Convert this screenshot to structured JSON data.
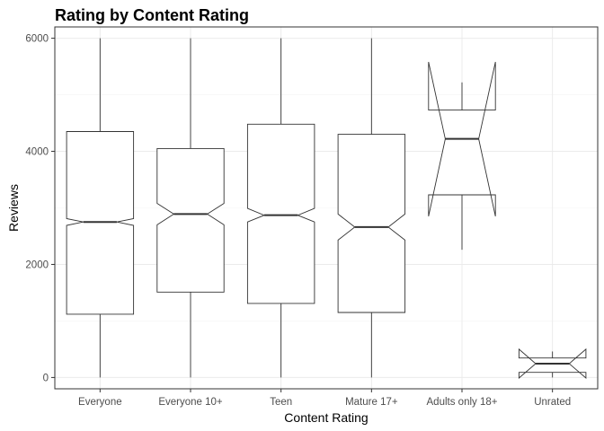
{
  "chart_data": {
    "type": "boxplot",
    "title": "Rating by Content Rating",
    "xlabel": "Content Rating",
    "ylabel": "Reviews",
    "ylim": [
      -200,
      6200
    ],
    "yticks": [
      0,
      2000,
      4000,
      6000
    ],
    "ytick_labels": [
      "0",
      "2000",
      "4000",
      "6000"
    ],
    "notched": true,
    "grid": true,
    "categories": [
      "Everyone",
      "Everyone 10+",
      "Teen",
      "Mature 17+",
      "Adults only 18+",
      "Unrated"
    ],
    "boxes": [
      {
        "category": "Everyone",
        "whisker_low": 0,
        "q1": 1120,
        "median": 2750,
        "q3": 4350,
        "whisker_high": 6000,
        "notch_low": 2690,
        "notch_high": 2810
      },
      {
        "category": "Everyone 10+",
        "whisker_low": 0,
        "q1": 1510,
        "median": 2890,
        "q3": 4050,
        "whisker_high": 6000,
        "notch_low": 2700,
        "notch_high": 3080
      },
      {
        "category": "Teen",
        "whisker_low": 0,
        "q1": 1310,
        "median": 2870,
        "q3": 4480,
        "whisker_high": 6000,
        "notch_low": 2750,
        "notch_high": 2990
      },
      {
        "category": "Mature 17+",
        "whisker_low": 0,
        "q1": 1150,
        "median": 2660,
        "q3": 4300,
        "whisker_high": 6000,
        "notch_low": 2430,
        "notch_high": 2890
      },
      {
        "category": "Adults only 18+",
        "whisker_low": 2260,
        "q1": 3230,
        "median": 4220,
        "q3": 4730,
        "whisker_high": 5220,
        "notch_low": 2850,
        "notch_high": 5580
      },
      {
        "category": "Unrated",
        "whisker_low": 0,
        "q1": 90,
        "median": 245,
        "q3": 345,
        "whisker_high": 460,
        "notch_low": -10,
        "notch_high": 500
      }
    ]
  }
}
